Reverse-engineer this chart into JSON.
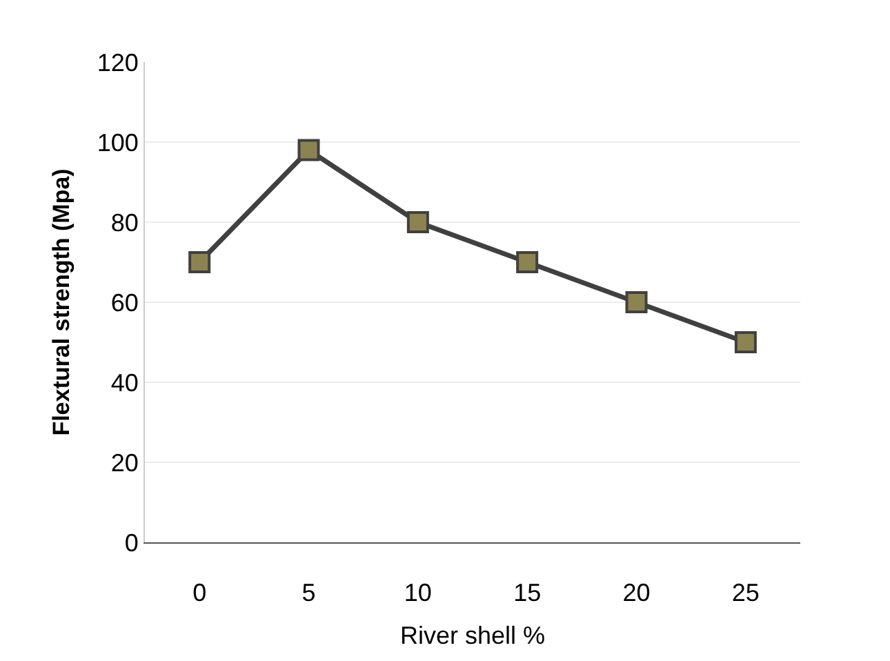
{
  "chart_data": {
    "type": "line",
    "xlabel": "River shell %",
    "ylabel": "Flextural strength (Mpa)",
    "categories": [
      "0",
      "5",
      "10",
      "15",
      "20",
      "25"
    ],
    "series": [
      {
        "color": "#8c8450",
        "values": [
          70,
          98,
          80,
          70,
          60,
          50
        ]
      }
    ],
    "ylim": [
      0,
      120
    ],
    "yticks": [
      0,
      20,
      40,
      60,
      80,
      100,
      120
    ],
    "grid": "y",
    "marker": "square",
    "line_style": "solid"
  }
}
